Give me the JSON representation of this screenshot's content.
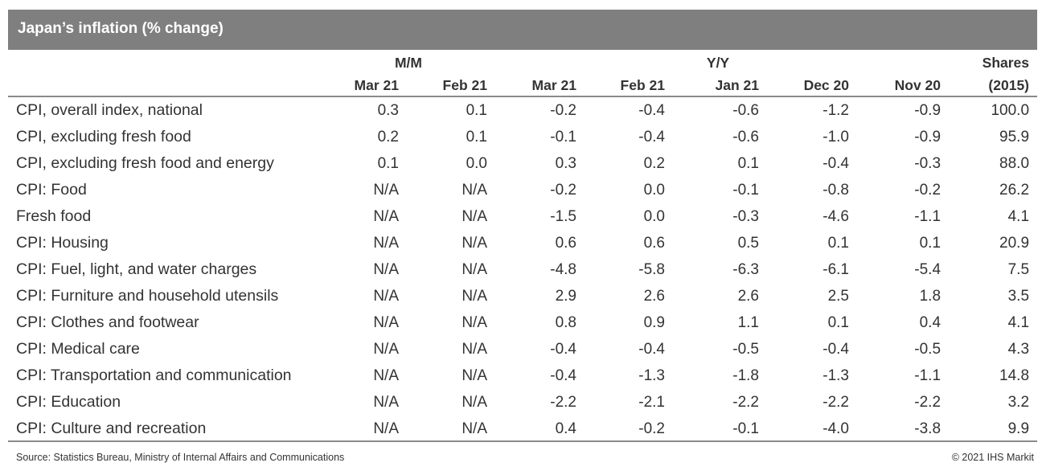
{
  "title": "Japan’s inflation (% change)",
  "header": {
    "group_mm": "M/M",
    "group_yy": "Y/Y",
    "shares_line1": "Shares",
    "shares_line2": "(2015)",
    "mm_months": [
      "Mar 21",
      "Feb 21"
    ],
    "yy_months": [
      "Mar 21",
      "Feb 21",
      "Jan 21",
      "Dec 20",
      "Nov 20"
    ]
  },
  "rows": [
    {
      "label": "CPI, overall index, national",
      "values": [
        "0.3",
        "0.1",
        "-0.2",
        "-0.4",
        "-0.6",
        "-1.2",
        "-0.9",
        "100.0"
      ]
    },
    {
      "label": "CPI, excluding fresh food",
      "values": [
        "0.2",
        "0.1",
        "-0.1",
        "-0.4",
        "-0.6",
        "-1.0",
        "-0.9",
        "95.9"
      ]
    },
    {
      "label": "CPI, excluding fresh food and energy",
      "values": [
        "0.1",
        "0.0",
        "0.3",
        "0.2",
        "0.1",
        "-0.4",
        "-0.3",
        "88.0"
      ]
    },
    {
      "label": "CPI: Food",
      "values": [
        "N/A",
        "N/A",
        "-0.2",
        "0.0",
        "-0.1",
        "-0.8",
        "-0.2",
        "26.2"
      ]
    },
    {
      "label": "Fresh food",
      "values": [
        "N/A",
        "N/A",
        "-1.5",
        "0.0",
        "-0.3",
        "-4.6",
        "-1.1",
        "4.1"
      ]
    },
    {
      "label": "CPI: Housing",
      "values": [
        "N/A",
        "N/A",
        "0.6",
        "0.6",
        "0.5",
        "0.1",
        "0.1",
        "20.9"
      ]
    },
    {
      "label": "CPI: Fuel, light, and water charges",
      "values": [
        "N/A",
        "N/A",
        "-4.8",
        "-5.8",
        "-6.3",
        "-6.1",
        "-5.4",
        "7.5"
      ]
    },
    {
      "label": "CPI: Furniture and household utensils",
      "values": [
        "N/A",
        "N/A",
        "2.9",
        "2.6",
        "2.6",
        "2.5",
        "1.8",
        "3.5"
      ]
    },
    {
      "label": "CPI: Clothes and footwear",
      "values": [
        "N/A",
        "N/A",
        "0.8",
        "0.9",
        "1.1",
        "0.1",
        "0.4",
        "4.1"
      ]
    },
    {
      "label": "CPI: Medical care",
      "values": [
        "N/A",
        "N/A",
        "-0.4",
        "-0.4",
        "-0.5",
        "-0.4",
        "-0.5",
        "4.3"
      ]
    },
    {
      "label": "CPI: Transportation and communication",
      "values": [
        "N/A",
        "N/A",
        "-0.4",
        "-1.3",
        "-1.8",
        "-1.3",
        "-1.1",
        "14.8"
      ]
    },
    {
      "label": "CPI: Education",
      "values": [
        "N/A",
        "N/A",
        "-2.2",
        "-2.1",
        "-2.2",
        "-2.2",
        "-2.2",
        "3.2"
      ]
    },
    {
      "label": "CPI: Culture and recreation",
      "values": [
        "N/A",
        "N/A",
        "0.4",
        "-0.2",
        "-0.1",
        "-4.0",
        "-3.8",
        "9.9"
      ]
    }
  ],
  "footer": {
    "source": "Source: Statistics Bureau, Ministry of Internal Affairs and Communications",
    "copyright": "© 2021 IHS Markit"
  }
}
